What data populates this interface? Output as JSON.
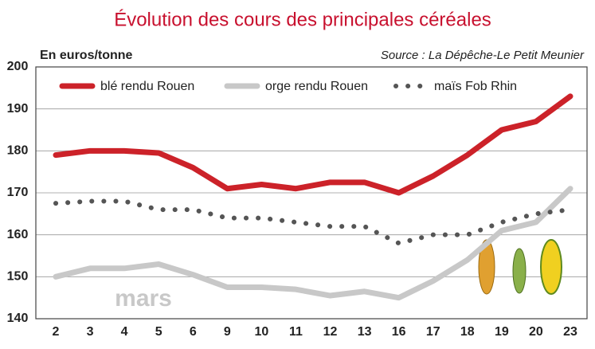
{
  "chart_data": {
    "type": "line",
    "title": "Évolution des cours des principales céréales",
    "y_label": "En euros/tonne",
    "source": "Source : La Dépêche-Le Petit Meunier",
    "annotation": "mars",
    "categories": [
      "2",
      "3",
      "4",
      "5",
      "6",
      "9",
      "10",
      "11",
      "12",
      "13",
      "16",
      "17",
      "18",
      "19",
      "20",
      "23"
    ],
    "series": [
      {
        "name": "blé rendu Rouen",
        "color": "#cc2229",
        "style": "solid",
        "values": [
          179,
          180,
          180,
          179.5,
          176,
          171,
          172,
          171,
          172.5,
          172.5,
          170,
          174,
          179,
          185,
          187,
          193
        ]
      },
      {
        "name": "orge rendu Rouen",
        "color": "#c8c8c8",
        "style": "solid",
        "values": [
          150,
          152,
          152,
          153,
          150.5,
          147.5,
          147.5,
          147,
          145.5,
          146.5,
          145,
          149,
          154,
          161,
          163,
          171
        ]
      },
      {
        "name": "maïs Fob Rhin",
        "color": "#555555",
        "style": "dotted",
        "values": [
          167.5,
          168,
          168,
          166,
          166,
          164,
          164,
          163,
          162,
          162,
          158,
          160,
          160,
          163,
          165,
          166
        ]
      }
    ],
    "ylim": [
      140,
      200
    ],
    "yticks": [
      140,
      150,
      160,
      170,
      180,
      190,
      200
    ],
    "grid": true
  }
}
